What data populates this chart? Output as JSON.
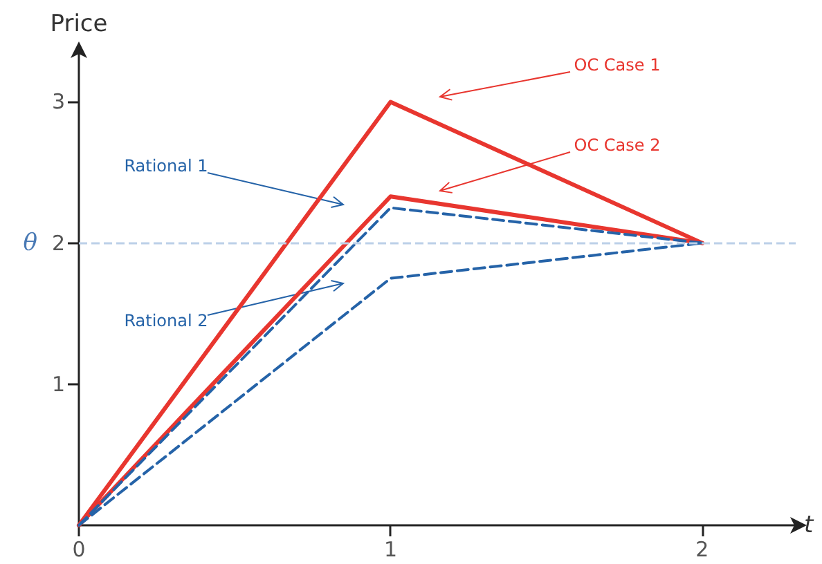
{
  "chart_data": {
    "type": "line",
    "xlabel": "t",
    "ylabel": "Price",
    "x": [
      0,
      1,
      2
    ],
    "series": [
      {
        "color": "#e8362f",
        "values": [
          0,
          3,
          2
        ],
        "line_style": "solid"
      },
      {
        "color": "#e8362f",
        "values": [
          0,
          2.33,
          2
        ],
        "line_style": "solid"
      },
      {
        "color": "#2563a8",
        "values": [
          0,
          2.25,
          2
        ],
        "line_style": "dashed"
      },
      {
        "color": "#2563a8",
        "values": [
          0,
          1.75,
          2
        ],
        "line_style": "dashed"
      }
    ],
    "xlim": [
      0,
      2.3
    ],
    "ylim": [
      0,
      3.35
    ],
    "xticks": [
      0,
      1,
      2
    ],
    "yticks": [
      1,
      2,
      3
    ],
    "ref_lines": [
      {
        "axis": "y",
        "value": 2,
        "label": "θ",
        "color": "#bcd0e8",
        "line_style": "dashed"
      }
    ],
    "annotations": [
      "OC Case 1",
      "OC Case 2",
      "Rational 1",
      "Rational 2"
    ],
    "grid": false,
    "marker": "none"
  }
}
